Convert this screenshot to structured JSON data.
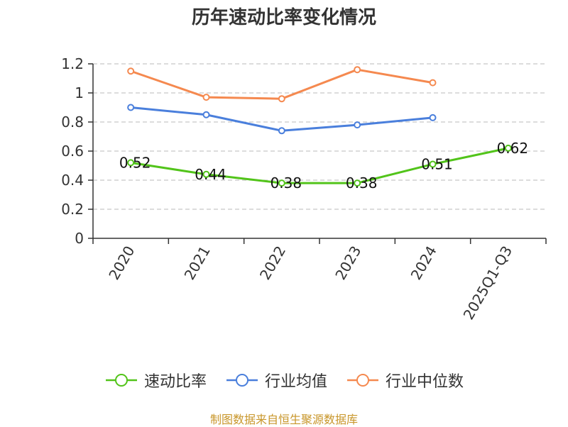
{
  "title": "历年速动比率变化情况",
  "source_note": "制图数据来自恒生聚源数据库",
  "colors": {
    "series": [
      "#52c41a",
      "#4a7fdc",
      "#f5894f"
    ],
    "grid": "#c8c8c8",
    "axis": "#333333"
  },
  "chart_data": {
    "type": "line",
    "title": "历年速动比率变化情况",
    "categories": [
      "2020",
      "2021",
      "2022",
      "2023",
      "2024",
      "2025Q1-Q3"
    ],
    "ylim": [
      0,
      1.2
    ],
    "yticks": [
      "0",
      "0.2",
      "0.4",
      "0.6",
      "0.8",
      "1",
      "1.2"
    ],
    "grid": true,
    "legend_position": "bottom",
    "series": [
      {
        "name": "速动比率",
        "values": [
          0.52,
          0.44,
          0.38,
          0.38,
          0.51,
          0.62
        ],
        "labels": [
          "0.52",
          "0.44",
          "0.38",
          "0.38",
          "0.51",
          "0.62"
        ]
      },
      {
        "name": "行业均值",
        "values": [
          0.9,
          0.85,
          0.74,
          0.78,
          0.83,
          null
        ]
      },
      {
        "name": "行业中位数",
        "values": [
          1.15,
          0.97,
          0.96,
          1.16,
          1.07,
          null
        ]
      }
    ]
  }
}
